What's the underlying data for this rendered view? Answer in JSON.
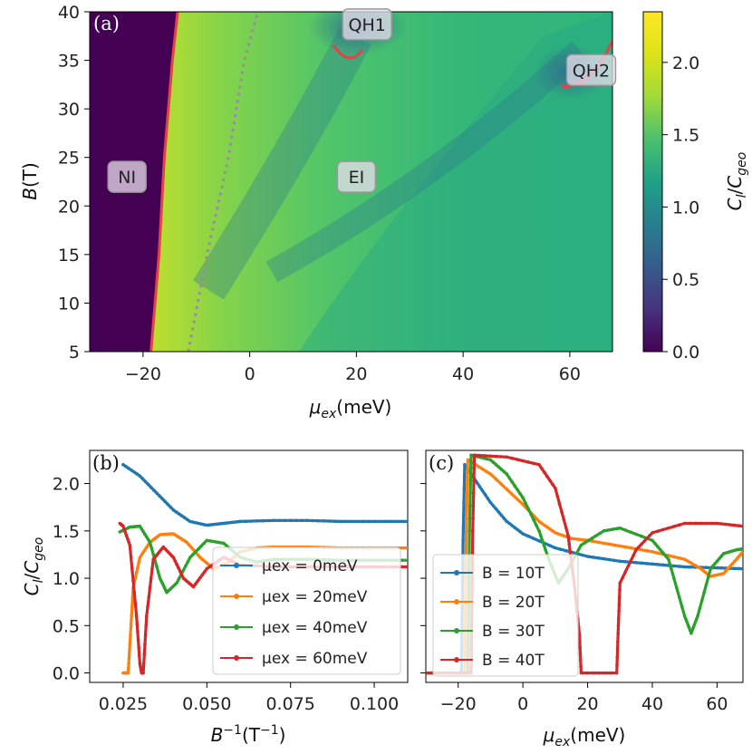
{
  "chart_data": [
    {
      "id": "a",
      "type": "heatmap",
      "panel_label": "(a)",
      "xlabel": "μex(meV)",
      "ylabel": "B(T)",
      "xlim": [
        -30,
        68
      ],
      "ylim": [
        5,
        40
      ],
      "xticks": [
        "−20",
        "0",
        "20",
        "40",
        "60"
      ],
      "xtick_values": [
        -20,
        0,
        20,
        40,
        60
      ],
      "yticks": [
        "5",
        "10",
        "15",
        "20",
        "25",
        "30",
        "35",
        "40"
      ],
      "ytick_values": [
        5,
        10,
        15,
        20,
        25,
        30,
        35,
        40
      ],
      "colorbar": {
        "label": "C_l/C_geo",
        "range": [
          0,
          2.35
        ],
        "ticks": [
          "0.0",
          "0.5",
          "1.0",
          "1.5",
          "2.0"
        ],
        "tick_values": [
          0,
          0.5,
          1.0,
          1.5,
          2.0
        ]
      },
      "regions": [
        {
          "label": "NI",
          "mu": -23,
          "B": 23
        },
        {
          "label": "EI",
          "mu": 20,
          "B": 23
        },
        {
          "label": "QH1",
          "mu": 22,
          "B": 38.7
        },
        {
          "label": "QH2",
          "mu": 64,
          "B": 34
        }
      ],
      "boundary_ni": [
        [
          -18.5,
          5
        ],
        [
          -17,
          15
        ],
        [
          -16,
          25
        ],
        [
          -14.5,
          35
        ],
        [
          -13.5,
          40
        ]
      ],
      "dotted_line": [
        [
          -11.5,
          5
        ],
        [
          -8,
          15
        ],
        [
          -4,
          25
        ],
        [
          -1,
          35
        ],
        [
          1.5,
          40
        ]
      ]
    },
    {
      "id": "b",
      "type": "line",
      "panel_label": "(b)",
      "xlabel": "B⁻¹(T⁻¹)",
      "ylabel": "C_l/C_geo",
      "xlim": [
        0.015,
        0.11
      ],
      "ylim": [
        -0.1,
        2.35
      ],
      "xticks": [
        "0.025",
        "0.050",
        "0.075",
        "0.100"
      ],
      "xtick_values": [
        0.025,
        0.05,
        0.075,
        0.1
      ],
      "yticks": [
        "0.0",
        "0.5",
        "1.0",
        "1.5",
        "2.0"
      ],
      "ytick_values": [
        0,
        0.5,
        1.0,
        1.5,
        2.0
      ],
      "legend_position": "center-right",
      "series": [
        {
          "name": "μex = 0meV",
          "color": "#1f77b4",
          "x": [
            0.025,
            0.03,
            0.035,
            0.04,
            0.045,
            0.05,
            0.055,
            0.06,
            0.07,
            0.08,
            0.09,
            0.1,
            0.11
          ],
          "y": [
            2.2,
            2.08,
            1.9,
            1.72,
            1.6,
            1.56,
            1.58,
            1.6,
            1.61,
            1.61,
            1.6,
            1.6,
            1.6
          ]
        },
        {
          "name": "μex = 20meV",
          "color": "#ff7f0e",
          "x": [
            0.025,
            0.0265,
            0.027,
            0.028,
            0.03,
            0.033,
            0.036,
            0.04,
            0.044,
            0.048,
            0.052,
            0.056,
            0.06,
            0.065,
            0.07,
            0.08,
            0.09,
            0.1,
            0.11
          ],
          "y": [
            0.0,
            0.0,
            0.3,
            0.9,
            1.22,
            1.38,
            1.46,
            1.47,
            1.38,
            1.22,
            1.1,
            1.16,
            1.28,
            1.32,
            1.33,
            1.33,
            1.32,
            1.32,
            1.32
          ]
        },
        {
          "name": "μex = 40meV",
          "color": "#2ca02c",
          "x": [
            0.024,
            0.027,
            0.03,
            0.033,
            0.036,
            0.038,
            0.041,
            0.045,
            0.05,
            0.055,
            0.06,
            0.065,
            0.07,
            0.08,
            0.09,
            0.1,
            0.11
          ],
          "y": [
            1.49,
            1.54,
            1.55,
            1.38,
            1.0,
            0.85,
            0.95,
            1.22,
            1.4,
            1.37,
            1.22,
            1.17,
            1.2,
            1.2,
            1.19,
            1.19,
            1.19
          ]
        },
        {
          "name": "μex = 60meV",
          "color": "#d62728",
          "x": [
            0.024,
            0.025,
            0.027,
            0.029,
            0.03,
            0.0305,
            0.031,
            0.032,
            0.034,
            0.037,
            0.04,
            0.043,
            0.046,
            0.05,
            0.055,
            0.06,
            0.07,
            0.08,
            0.09,
            0.1,
            0.11
          ],
          "y": [
            1.58,
            1.55,
            1.35,
            0.6,
            0.1,
            0.0,
            0.0,
            0.6,
            1.2,
            1.33,
            1.22,
            1.0,
            0.91,
            1.1,
            1.22,
            1.14,
            1.12,
            1.12,
            1.12,
            1.12,
            1.12
          ]
        }
      ]
    },
    {
      "id": "c",
      "type": "line",
      "panel_label": "(c)",
      "xlabel": "μex(meV)",
      "ylabel": "",
      "xlim": [
        -30,
        68
      ],
      "ylim": [
        -0.1,
        2.35
      ],
      "xticks": [
        "−20",
        "0",
        "20",
        "40",
        "60"
      ],
      "xtick_values": [
        -20,
        0,
        20,
        40,
        60
      ],
      "legend_position": "center-left",
      "series": [
        {
          "name": "B = 10T",
          "color": "#1f77b4",
          "x": [
            -30,
            -19.5,
            -19,
            -18.5,
            -18,
            -15,
            -10,
            -5,
            0,
            10,
            20,
            30,
            40,
            50,
            60,
            68
          ],
          "y": [
            0,
            0,
            0,
            1.4,
            2.2,
            2.05,
            1.8,
            1.6,
            1.47,
            1.32,
            1.23,
            1.18,
            1.15,
            1.12,
            1.11,
            1.1
          ]
        },
        {
          "name": "B = 20T",
          "color": "#ff7f0e",
          "x": [
            -30,
            -18.5,
            -18,
            -17.5,
            -17,
            -10,
            0,
            5,
            10,
            15,
            20,
            30,
            40,
            50,
            55,
            58,
            62,
            66,
            68
          ],
          "y": [
            0,
            0,
            0,
            1.5,
            2.25,
            2.1,
            1.78,
            1.6,
            1.48,
            1.42,
            1.4,
            1.34,
            1.28,
            1.2,
            1.1,
            1.02,
            1.05,
            1.2,
            1.28
          ]
        },
        {
          "name": "B = 30T",
          "color": "#2ca02c",
          "x": [
            -30,
            -17.5,
            -17,
            -16.5,
            -16,
            -10,
            -5,
            0,
            5,
            8,
            11,
            14,
            18,
            25,
            30,
            40,
            45,
            50,
            52,
            54,
            58,
            62,
            66,
            68
          ],
          "y": [
            0,
            0,
            0,
            1.5,
            2.3,
            2.25,
            2.1,
            1.85,
            1.5,
            1.2,
            0.95,
            1.1,
            1.35,
            1.5,
            1.53,
            1.4,
            1.2,
            0.6,
            0.42,
            0.6,
            1.1,
            1.26,
            1.3,
            1.31
          ]
        },
        {
          "name": "B = 40T",
          "color": "#d62728",
          "x": [
            -30,
            -16.5,
            -16,
            -15.5,
            -15,
            -5,
            5,
            10,
            14,
            16,
            17.5,
            18,
            29,
            29.5,
            30,
            35,
            40,
            50,
            60,
            68
          ],
          "y": [
            0,
            0,
            0,
            1.5,
            2.3,
            2.28,
            2.2,
            1.95,
            1.45,
            0.9,
            0.4,
            0.0,
            0.0,
            0.5,
            0.95,
            1.3,
            1.48,
            1.58,
            1.58,
            1.55
          ]
        }
      ]
    }
  ]
}
